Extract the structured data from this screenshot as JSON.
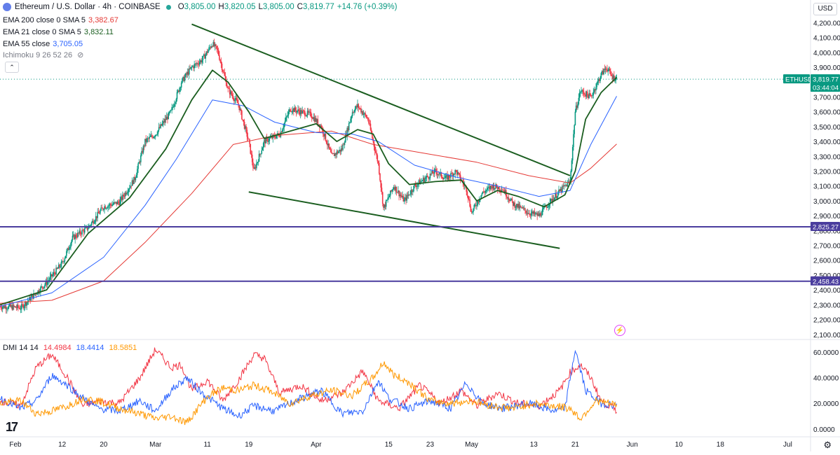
{
  "header": {
    "symbol_title": "Ethereum / U.S. Dollar · 4h · COINBASE",
    "o_label": "O",
    "o_value": "3,805.00",
    "h_label": "H",
    "h_value": "3,820.05",
    "l_label": "L",
    "l_value": "3,805.00",
    "c_label": "C",
    "c_value": "3,819.77",
    "change": "+14.76 (+0.39%)",
    "currency_button": "USD"
  },
  "indicators": [
    {
      "label": "EMA 200 close 0 SMA 5",
      "value": "3,382.67",
      "color": "#e53935"
    },
    {
      "label": "EMA 21 close 0 SMA 5",
      "value": "3,832.11",
      "color": "#1b5e20"
    },
    {
      "label": "EMA 55 close",
      "value": "3,705.05",
      "color": "#2962ff"
    },
    {
      "label": "Ichimoku 9 26 52 26",
      "value": "",
      "color": "#787b86"
    }
  ],
  "dmi": {
    "label": "DMI 14 14",
    "plus_di": "14.4984",
    "minus_di": "18.4414",
    "adx": "18.5851",
    "colors": {
      "plus_di": "#f23645",
      "minus_di": "#2962ff",
      "adx": "#ff9800"
    }
  },
  "price_tags": [
    {
      "text": "ETHUSD",
      "color": "#089981"
    },
    {
      "text": "3,819.77",
      "color": "#089981"
    },
    {
      "text": "03:44:04",
      "color": "#089981"
    },
    {
      "text": "2,825.27",
      "color": "#4a3d9e"
    },
    {
      "text": "2,458.43",
      "color": "#4a3d9e"
    }
  ],
  "x_axis_labels": [
    "Feb",
    "12",
    "20",
    "Mar",
    "11",
    "19",
    "Apr",
    "15",
    "23",
    "May",
    "13",
    "21",
    "Jun",
    "10",
    "18",
    "Jul"
  ],
  "chart_data": [
    {
      "type": "candlestick",
      "title": "Ethereum / U.S. Dollar · 4h · COINBASE",
      "y_ticks": [
        "4,200.00",
        "4,100.00",
        "4,000.00",
        "3,900.00",
        "3,800.00",
        "3,700.00",
        "3,600.00",
        "3,500.00",
        "3,400.00",
        "3,300.00",
        "3,200.00",
        "3,100.00",
        "3,000.00",
        "2,900.00",
        "2,800.00",
        "2,700.00",
        "2,600.00",
        "2,500.00",
        "2,400.00",
        "2,300.00",
        "2,200.00",
        "2,100.00"
      ],
      "ylim": [
        2080,
        4240
      ],
      "x_range": [
        "2024-01-31",
        "2024-07-05"
      ],
      "price_path": [
        [
          "2024-01-31",
          2290
        ],
        [
          "2024-02-04",
          2280
        ],
        [
          "2024-02-07",
          2380
        ],
        [
          "2024-02-09",
          2450
        ],
        [
          "2024-02-12",
          2580
        ],
        [
          "2024-02-14",
          2750
        ],
        [
          "2024-02-17",
          2820
        ],
        [
          "2024-02-20",
          2960
        ],
        [
          "2024-02-23",
          2990
        ],
        [
          "2024-02-26",
          3150
        ],
        [
          "2024-02-28",
          3400
        ],
        [
          "2024-03-01",
          3450
        ],
        [
          "2024-03-04",
          3600
        ],
        [
          "2024-03-06",
          3800
        ],
        [
          "2024-03-08",
          3900
        ],
        [
          "2024-03-10",
          3950
        ],
        [
          "2024-03-12",
          4060
        ],
        [
          "2024-03-13",
          4010
        ],
        [
          "2024-03-15",
          3750
        ],
        [
          "2024-03-17",
          3650
        ],
        [
          "2024-03-19",
          3400
        ],
        [
          "2024-03-20",
          3200
        ],
        [
          "2024-03-22",
          3400
        ],
        [
          "2024-03-25",
          3450
        ],
        [
          "2024-03-27",
          3620
        ],
        [
          "2024-03-31",
          3580
        ],
        [
          "2024-04-02",
          3500
        ],
        [
          "2024-04-04",
          3300
        ],
        [
          "2024-04-06",
          3350
        ],
        [
          "2024-04-08",
          3600
        ],
        [
          "2024-04-09",
          3640
        ],
        [
          "2024-04-11",
          3550
        ],
        [
          "2024-04-13",
          3250
        ],
        [
          "2024-04-14",
          2950
        ],
        [
          "2024-04-16",
          3100
        ],
        [
          "2024-04-18",
          3000
        ],
        [
          "2024-04-20",
          3100
        ],
        [
          "2024-04-22",
          3150
        ],
        [
          "2024-04-24",
          3200
        ],
        [
          "2024-04-26",
          3150
        ],
        [
          "2024-04-28",
          3200
        ],
        [
          "2024-04-30",
          3080
        ],
        [
          "2024-05-01",
          2920
        ],
        [
          "2024-05-03",
          3050
        ],
        [
          "2024-05-05",
          3100
        ],
        [
          "2024-05-07",
          3080
        ],
        [
          "2024-05-09",
          2980
        ],
        [
          "2024-05-12",
          2920
        ],
        [
          "2024-05-14",
          2900
        ],
        [
          "2024-05-16",
          2990
        ],
        [
          "2024-05-19",
          3100
        ],
        [
          "2024-05-20",
          3130
        ],
        [
          "2024-05-21",
          3600
        ],
        [
          "2024-05-22",
          3740
        ],
        [
          "2024-05-24",
          3700
        ],
        [
          "2024-05-26",
          3850
        ],
        [
          "2024-05-27",
          3900
        ],
        [
          "2024-05-28",
          3840
        ],
        [
          "2024-05-29",
          3820
        ]
      ],
      "ema21": [
        [
          "2024-01-31",
          2300
        ],
        [
          "2024-02-09",
          2400
        ],
        [
          "2024-02-17",
          2780
        ],
        [
          "2024-02-25",
          3020
        ],
        [
          "2024-03-03",
          3350
        ],
        [
          "2024-03-08",
          3680
        ],
        [
          "2024-03-12",
          3880
        ],
        [
          "2024-03-15",
          3800
        ],
        [
          "2024-03-19",
          3600
        ],
        [
          "2024-03-22",
          3420
        ],
        [
          "2024-03-27",
          3470
        ],
        [
          "2024-04-01",
          3520
        ],
        [
          "2024-04-05",
          3400
        ],
        [
          "2024-04-09",
          3480
        ],
        [
          "2024-04-12",
          3450
        ],
        [
          "2024-04-15",
          3250
        ],
        [
          "2024-04-19",
          3110
        ],
        [
          "2024-04-24",
          3130
        ],
        [
          "2024-04-29",
          3140
        ],
        [
          "2024-05-02",
          3000
        ],
        [
          "2024-05-06",
          3070
        ],
        [
          "2024-05-10",
          3030
        ],
        [
          "2024-05-15",
          2960
        ],
        [
          "2024-05-19",
          3040
        ],
        [
          "2024-05-21",
          3200
        ],
        [
          "2024-05-23",
          3550
        ],
        [
          "2024-05-26",
          3730
        ],
        [
          "2024-05-29",
          3832
        ]
      ],
      "ema55": [
        [
          "2024-01-31",
          2290
        ],
        [
          "2024-02-10",
          2380
        ],
        [
          "2024-02-20",
          2620
        ],
        [
          "2024-02-28",
          2970
        ],
        [
          "2024-03-05",
          3280
        ],
        [
          "2024-03-12",
          3680
        ],
        [
          "2024-03-18",
          3640
        ],
        [
          "2024-03-24",
          3530
        ],
        [
          "2024-04-01",
          3460
        ],
        [
          "2024-04-08",
          3450
        ],
        [
          "2024-04-13",
          3400
        ],
        [
          "2024-04-20",
          3240
        ],
        [
          "2024-04-28",
          3160
        ],
        [
          "2024-05-06",
          3100
        ],
        [
          "2024-05-14",
          3030
        ],
        [
          "2024-05-20",
          3070
        ],
        [
          "2024-05-24",
          3380
        ],
        [
          "2024-05-29",
          3705
        ]
      ],
      "ema200": [
        [
          "2024-01-31",
          2310
        ],
        [
          "2024-02-10",
          2330
        ],
        [
          "2024-02-20",
          2460
        ],
        [
          "2024-02-28",
          2720
        ],
        [
          "2024-03-08",
          3050
        ],
        [
          "2024-03-16",
          3380
        ],
        [
          "2024-03-24",
          3440
        ],
        [
          "2024-04-04",
          3470
        ],
        [
          "2024-04-12",
          3380
        ],
        [
          "2024-04-22",
          3320
        ],
        [
          "2024-05-02",
          3260
        ],
        [
          "2024-05-12",
          3170
        ],
        [
          "2024-05-20",
          3120
        ],
        [
          "2024-05-24",
          3220
        ],
        [
          "2024-05-29",
          3383
        ]
      ],
      "trend_lines": [
        {
          "from": [
            "2024-03-08",
            4190
          ],
          "to": [
            "2024-05-20",
            3170
          ],
          "color": "#1b5e20"
        },
        {
          "from": [
            "2024-03-19",
            3060
          ],
          "to": [
            "2024-05-18",
            2680
          ],
          "color": "#1b5e20"
        }
      ],
      "horizontal_levels": [
        2825.27,
        2458.43
      ],
      "last_price": 3819.77
    },
    {
      "type": "line",
      "title": "DMI 14 14",
      "y_ticks": [
        "60.0000",
        "40.0000",
        "20.0000",
        "0.0000"
      ],
      "ylim": [
        -5,
        67
      ],
      "series": [
        {
          "name": "+DI",
          "color": "#f23645",
          "values": [
            [
              "2024-01-31",
              22
            ],
            [
              "2024-02-04",
              18
            ],
            [
              "2024-02-07",
              48
            ],
            [
              "2024-02-10",
              58
            ],
            [
              "2024-02-13",
              40
            ],
            [
              "2024-02-16",
              18
            ],
            [
              "2024-02-19",
              22
            ],
            [
              "2024-02-23",
              20
            ],
            [
              "2024-02-27",
              40
            ],
            [
              "2024-03-01",
              62
            ],
            [
              "2024-03-04",
              48
            ],
            [
              "2024-03-06",
              50
            ],
            [
              "2024-03-08",
              30
            ],
            [
              "2024-03-11",
              38
            ],
            [
              "2024-03-14",
              22
            ],
            [
              "2024-03-17",
              38
            ],
            [
              "2024-03-20",
              58
            ],
            [
              "2024-03-22",
              55
            ],
            [
              "2024-03-25",
              28
            ],
            [
              "2024-03-29",
              34
            ],
            [
              "2024-04-02",
              22
            ],
            [
              "2024-04-06",
              28
            ],
            [
              "2024-04-10",
              45
            ],
            [
              "2024-04-13",
              22
            ],
            [
              "2024-04-17",
              16
            ],
            [
              "2024-04-21",
              34
            ],
            [
              "2024-04-25",
              20
            ],
            [
              "2024-04-29",
              30
            ],
            [
              "2024-05-02",
              18
            ],
            [
              "2024-05-06",
              28
            ],
            [
              "2024-05-10",
              20
            ],
            [
              "2024-05-14",
              18
            ],
            [
              "2024-05-18",
              30
            ],
            [
              "2024-05-20",
              44
            ],
            [
              "2024-05-22",
              50
            ],
            [
              "2024-05-24",
              40
            ],
            [
              "2024-05-26",
              22
            ],
            [
              "2024-05-29",
              14.5
            ]
          ]
        },
        {
          "name": "-DI",
          "color": "#2962ff",
          "values": [
            [
              "2024-01-31",
              24
            ],
            [
              "2024-02-04",
              16
            ],
            [
              "2024-02-07",
              22
            ],
            [
              "2024-02-10",
              42
            ],
            [
              "2024-02-13",
              34
            ],
            [
              "2024-02-16",
              24
            ],
            [
              "2024-02-19",
              16
            ],
            [
              "2024-02-23",
              14
            ],
            [
              "2024-02-27",
              22
            ],
            [
              "2024-03-01",
              14
            ],
            [
              "2024-03-04",
              30
            ],
            [
              "2024-03-07",
              40
            ],
            [
              "2024-03-10",
              28
            ],
            [
              "2024-03-14",
              16
            ],
            [
              "2024-03-17",
              10
            ],
            [
              "2024-03-20",
              18
            ],
            [
              "2024-03-24",
              14
            ],
            [
              "2024-03-28",
              22
            ],
            [
              "2024-04-02",
              30
            ],
            [
              "2024-04-06",
              12
            ],
            [
              "2024-04-10",
              14
            ],
            [
              "2024-04-13",
              38
            ],
            [
              "2024-04-15",
              24
            ],
            [
              "2024-04-19",
              16
            ],
            [
              "2024-04-23",
              22
            ],
            [
              "2024-04-27",
              16
            ],
            [
              "2024-04-30",
              36
            ],
            [
              "2024-05-03",
              20
            ],
            [
              "2024-05-07",
              16
            ],
            [
              "2024-05-12",
              20
            ],
            [
              "2024-05-17",
              14
            ],
            [
              "2024-05-19",
              16
            ],
            [
              "2024-05-21",
              62
            ],
            [
              "2024-05-23",
              30
            ],
            [
              "2024-05-26",
              20
            ],
            [
              "2024-05-29",
              18.4
            ]
          ]
        },
        {
          "name": "ADX",
          "color": "#ff9800",
          "values": [
            [
              "2024-01-31",
              20
            ],
            [
              "2024-02-04",
              22
            ],
            [
              "2024-02-07",
              12
            ],
            [
              "2024-02-10",
              14
            ],
            [
              "2024-02-13",
              18
            ],
            [
              "2024-02-16",
              24
            ],
            [
              "2024-02-19",
              22
            ],
            [
              "2024-02-23",
              16
            ],
            [
              "2024-02-27",
              12
            ],
            [
              "2024-03-01",
              8
            ],
            [
              "2024-03-04",
              10
            ],
            [
              "2024-03-07",
              5
            ],
            [
              "2024-03-11",
              25
            ],
            [
              "2024-03-14",
              32
            ],
            [
              "2024-03-17",
              30
            ],
            [
              "2024-03-20",
              34
            ],
            [
              "2024-03-23",
              30
            ],
            [
              "2024-03-27",
              20
            ],
            [
              "2024-03-31",
              26
            ],
            [
              "2024-04-04",
              30
            ],
            [
              "2024-04-08",
              26
            ],
            [
              "2024-04-12",
              40
            ],
            [
              "2024-04-14",
              52
            ],
            [
              "2024-04-16",
              42
            ],
            [
              "2024-04-19",
              36
            ],
            [
              "2024-04-23",
              22
            ],
            [
              "2024-04-27",
              20
            ],
            [
              "2024-05-01",
              22
            ],
            [
              "2024-05-05",
              18
            ],
            [
              "2024-05-09",
              16
            ],
            [
              "2024-05-13",
              20
            ],
            [
              "2024-05-17",
              18
            ],
            [
              "2024-05-20",
              16
            ],
            [
              "2024-05-22",
              8
            ],
            [
              "2024-05-25",
              22
            ],
            [
              "2024-05-29",
              18.6
            ]
          ]
        }
      ]
    }
  ]
}
